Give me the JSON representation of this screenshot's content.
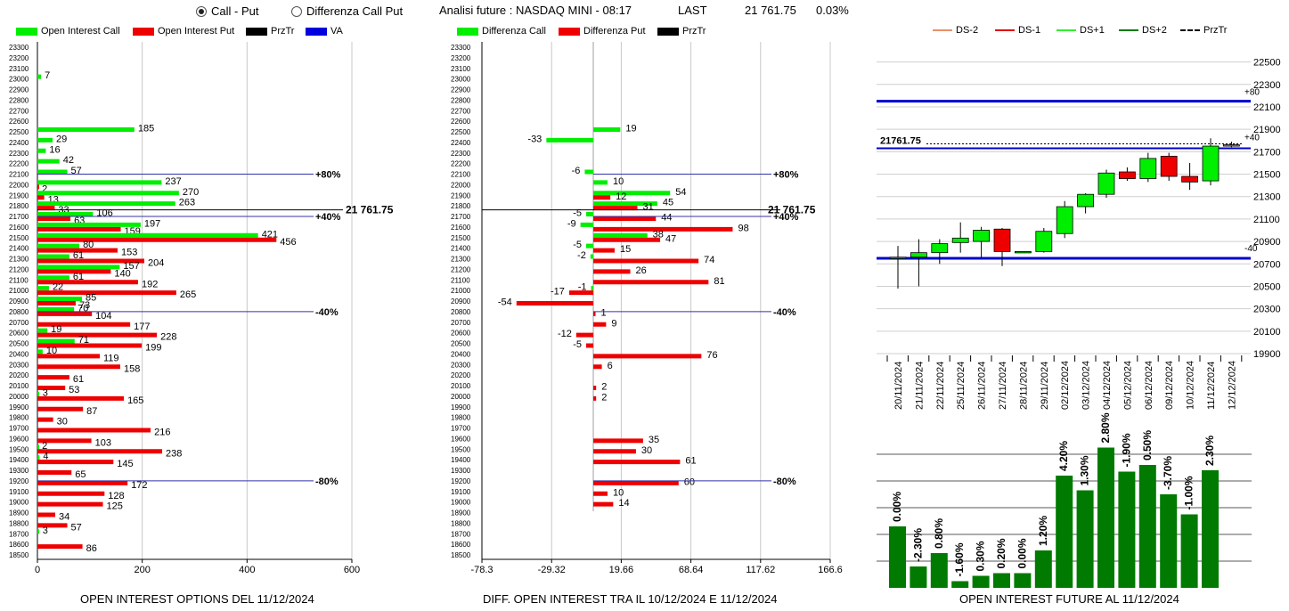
{
  "header": {
    "radio_call_put": "Call - Put",
    "radio_diff": "Differenza Call Put",
    "analysis": "Analisi future : NASDAQ MINI - 08:17",
    "last_label": "LAST",
    "last_value": "21 761.75",
    "change": "0.03%"
  },
  "legend1": {
    "call": "Open Interest Call",
    "put": "Open Interest Put",
    "prztr": "PrzTr",
    "va": "VA"
  },
  "legend2": {
    "call": "Differenza Call",
    "put": "Differenza Put",
    "prztr": "PrzTr"
  },
  "legend3": {
    "ds_m2": "DS-2",
    "ds_m1": "DS-1",
    "ds_p1": "DS+1",
    "ds_p2": "DS+2",
    "prztr": "PrzTr"
  },
  "captions": {
    "c1": "OPEN INTEREST OPTIONS DEL 11/12/2024",
    "c2": "DIFF. OPEN INTEREST TRA IL 10/12/2024 E 11/12/2024",
    "c3": "OPEN INTEREST FUTURE AL 11/12/2024"
  },
  "colors": {
    "call": "#00ee00",
    "put": "#ee0000",
    "va": "#0000cc",
    "dark_green": "#007a00",
    "ds_m2": "#e8906a",
    "ds_m1": "#e00000",
    "ds_p1": "#33ee33",
    "ds_p2": "#007a00"
  },
  "chart_data": [
    {
      "type": "bar",
      "strikes": [
        23300,
        23200,
        23100,
        23000,
        22900,
        22800,
        22700,
        22600,
        22500,
        22400,
        22300,
        22200,
        22100,
        22000,
        21900,
        21800,
        21700,
        21600,
        21500,
        21400,
        21300,
        21200,
        21100,
        21000,
        20900,
        20800,
        20700,
        20600,
        20500,
        20400,
        20300,
        20200,
        20100,
        20000,
        19900,
        19800,
        19700,
        19600,
        19500,
        19400,
        19300,
        19200,
        19100,
        19000,
        18900,
        18800,
        18700,
        18600,
        18500
      ],
      "xticks": [
        "0",
        "200",
        "400",
        "600"
      ],
      "xlim": [
        0,
        600
      ],
      "series": [
        {
          "name": "Open Interest Call",
          "values": [
            0,
            0,
            0,
            7,
            0,
            0,
            0,
            0,
            185,
            29,
            16,
            42,
            57,
            237,
            270,
            263,
            106,
            197,
            421,
            80,
            61,
            157,
            61,
            22,
            85,
            70,
            0,
            19,
            71,
            10,
            0,
            0,
            0,
            3,
            0,
            0,
            0,
            0,
            2,
            4,
            0,
            0,
            0,
            0,
            0,
            0,
            3,
            0,
            0
          ]
        },
        {
          "name": "Open Interest Put",
          "values": [
            0,
            0,
            0,
            0,
            0,
            0,
            0,
            0,
            0,
            0,
            0,
            0,
            0,
            2,
            13,
            33,
            63,
            159,
            456,
            153,
            204,
            140,
            192,
            265,
            73,
            104,
            177,
            228,
            199,
            119,
            158,
            61,
            53,
            165,
            87,
            30,
            216,
            103,
            238,
            145,
            65,
            172,
            128,
            125,
            34,
            57,
            0,
            86,
            0
          ]
        }
      ],
      "levels": [
        {
          "label": "+80%",
          "strike": 22100
        },
        {
          "label": "+40%",
          "strike": 21700
        },
        {
          "label": "-40%",
          "strike": 20800
        },
        {
          "label": "-80%",
          "strike": 19200
        }
      ],
      "price_label": "21 761.75",
      "price": 21761.75
    },
    {
      "type": "bar",
      "xticks": [
        "-78.3",
        "-29.32",
        "19.66",
        "68.64",
        "117.62",
        "166.6"
      ],
      "xlim": [
        -78.3,
        166.6
      ],
      "series": [
        {
          "name": "Differenza Call",
          "values": [
            0,
            0,
            0,
            0,
            0,
            0,
            0,
            0,
            19,
            -33,
            0,
            0,
            -6,
            10,
            54,
            45,
            -5,
            -9,
            38,
            -5,
            -2,
            0,
            0,
            -1,
            0,
            0,
            0,
            0,
            0,
            0,
            0,
            0,
            0,
            0,
            0,
            0,
            0,
            0,
            0,
            0,
            0,
            0,
            0,
            0,
            0,
            0,
            0,
            0,
            0
          ]
        },
        {
          "name": "Differenza Put",
          "values": [
            0,
            0,
            0,
            0,
            0,
            0,
            0,
            0,
            0,
            0,
            0,
            0,
            0,
            0,
            12,
            31,
            44,
            98,
            47,
            15,
            74,
            26,
            81,
            -17,
            -54,
            1,
            9,
            -12,
            -5,
            76,
            6,
            0,
            2,
            2,
            0,
            0,
            0,
            35,
            30,
            61,
            0,
            60,
            10,
            14,
            0,
            0,
            0,
            0,
            0
          ]
        }
      ],
      "levels": [
        {
          "label": "+80%",
          "strike": 22100
        },
        {
          "label": "+40%",
          "strike": 21700
        },
        {
          "label": "-40%",
          "strike": 20800
        },
        {
          "label": "-80%",
          "strike": 19200
        }
      ],
      "price_label": "21 761.75",
      "price": 21761.75
    },
    {
      "type": "candlestick",
      "dates": [
        "20/11/2024",
        "21/11/2024",
        "22/11/2024",
        "25/11/2024",
        "26/11/2024",
        "27/11/2024",
        "28/11/2024",
        "29/11/2024",
        "02/12/2024",
        "03/12/2024",
        "04/12/2024",
        "05/12/2024",
        "06/12/2024",
        "09/12/2024",
        "10/12/2024",
        "11/12/2024",
        "12/12/2024"
      ],
      "ohlc": [
        [
          20750,
          20860,
          20480,
          20760
        ],
        [
          20760,
          20920,
          20500,
          20800
        ],
        [
          20800,
          20920,
          20700,
          20880
        ],
        [
          20890,
          21070,
          20800,
          20930
        ],
        [
          20900,
          21030,
          20760,
          21000
        ],
        [
          21010,
          21020,
          20680,
          20810
        ],
        [
          20810,
          20810,
          20810,
          20810
        ],
        [
          20810,
          21020,
          20800,
          20990
        ],
        [
          20970,
          21260,
          20930,
          21210
        ],
        [
          21210,
          21330,
          21150,
          21320
        ],
        [
          21320,
          21540,
          21290,
          21510
        ],
        [
          21520,
          21560,
          21440,
          21460
        ],
        [
          21460,
          21690,
          21430,
          21640
        ],
        [
          21660,
          21690,
          21440,
          21480
        ],
        [
          21480,
          21600,
          21360,
          21430
        ],
        [
          21440,
          21820,
          21400,
          21750
        ],
        [
          21761.75,
          21790,
          21740,
          21761.75
        ]
      ],
      "yticks": [
        22500,
        22300,
        22100,
        21900,
        21700,
        21500,
        21300,
        21100,
        20900,
        20700,
        20500,
        20300,
        20100,
        19900
      ],
      "ylim": [
        19900,
        22600
      ],
      "va_high": 22150,
      "va_low": 20750,
      "va_high_label": "+80",
      "va_low_label": "-40",
      "mid_label": "+40",
      "price_label": "21761.75",
      "price": 21761.75
    },
    {
      "type": "bar",
      "values": [
        0.0,
        -2.3,
        0.8,
        -1.6,
        0.3,
        0.2,
        0.0,
        1.2,
        4.2,
        1.3,
        2.8,
        -1.9,
        0.5,
        -3.7,
        -1.0,
        2.3
      ],
      "labels": [
        "0.00%",
        "-2.30%",
        "0.80%",
        "-1.60%",
        "0.30%",
        "0.20%",
        "0.00%",
        "1.20%",
        "4.20%",
        "1.30%",
        "2.80%",
        "-1.90%",
        "0.50%",
        "-3.70%",
        "-1.00%",
        "2.30%"
      ],
      "heights": [
        0.46,
        0.16,
        0.26,
        0.05,
        0.09,
        0.11,
        0.11,
        0.28,
        0.84,
        0.73,
        1.05,
        0.87,
        0.92,
        0.7,
        0.55,
        0.88
      ]
    }
  ]
}
